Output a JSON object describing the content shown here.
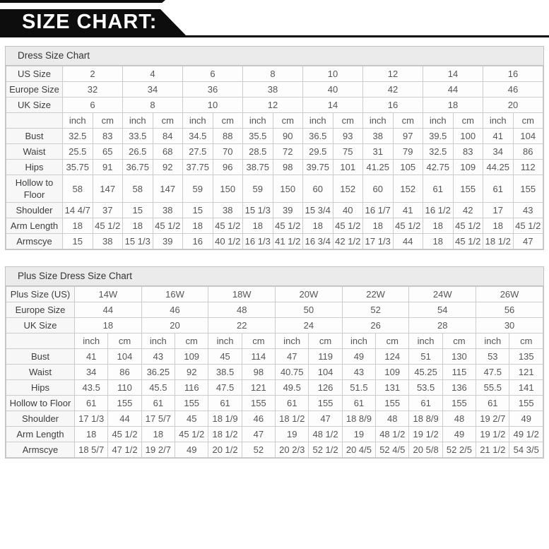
{
  "banner": {
    "title": "SIZE CHART:"
  },
  "tables": [
    {
      "title": "Dress Size Chart",
      "label_col_width": 80,
      "unit_columns": 16,
      "size_rows": [
        {
          "label": "US Size",
          "values": [
            "2",
            "4",
            "6",
            "8",
            "10",
            "12",
            "14",
            "16"
          ]
        },
        {
          "label": "Europe Size",
          "values": [
            "32",
            "34",
            "36",
            "38",
            "40",
            "42",
            "44",
            "46"
          ]
        },
        {
          "label": "UK Size",
          "values": [
            "6",
            "8",
            "10",
            "12",
            "14",
            "16",
            "18",
            "20"
          ]
        }
      ],
      "unit_labels": [
        "inch",
        "cm"
      ],
      "measure_rows": [
        {
          "label": "Bust",
          "values": [
            "32.5",
            "83",
            "33.5",
            "84",
            "34.5",
            "88",
            "35.5",
            "90",
            "36.5",
            "93",
            "38",
            "97",
            "39.5",
            "100",
            "41",
            "104"
          ]
        },
        {
          "label": "Waist",
          "values": [
            "25.5",
            "65",
            "26.5",
            "68",
            "27.5",
            "70",
            "28.5",
            "72",
            "29.5",
            "75",
            "31",
            "79",
            "32.5",
            "83",
            "34",
            "86"
          ]
        },
        {
          "label": "Hips",
          "values": [
            "35.75",
            "91",
            "36.75",
            "92",
            "37.75",
            "96",
            "38.75",
            "98",
            "39.75",
            "101",
            "41.25",
            "105",
            "42.75",
            "109",
            "44.25",
            "112"
          ]
        },
        {
          "label": "Hollow to Floor",
          "values": [
            "58",
            "147",
            "58",
            "147",
            "59",
            "150",
            "59",
            "150",
            "60",
            "152",
            "60",
            "152",
            "61",
            "155",
            "61",
            "155"
          ]
        },
        {
          "label": "Shoulder",
          "values": [
            "14 4/7",
            "37",
            "15",
            "38",
            "15",
            "38",
            "15 1/3",
            "39",
            "15 3/4",
            "40",
            "16 1/7",
            "41",
            "16 1/2",
            "42",
            "17",
            "43"
          ]
        },
        {
          "label": "Arm Length",
          "values": [
            "18",
            "45 1/2",
            "18",
            "45 1/2",
            "18",
            "45 1/2",
            "18",
            "45 1/2",
            "18",
            "45 1/2",
            "18",
            "45 1/2",
            "18",
            "45 1/2",
            "18",
            "45 1/2"
          ]
        },
        {
          "label": "Armscye",
          "values": [
            "15",
            "38",
            "15 1/3",
            "39",
            "16",
            "40 1/2",
            "16 1/3",
            "41 1/2",
            "16 3/4",
            "42 1/2",
            "17 1/3",
            "44",
            "18",
            "45 1/2",
            "18 1/2",
            "47"
          ]
        }
      ]
    },
    {
      "title": "Plus Size Dress Size Chart",
      "label_col_width": 97,
      "unit_columns": 14,
      "size_rows": [
        {
          "label": "Plus Size (US)",
          "values": [
            "14W",
            "16W",
            "18W",
            "20W",
            "22W",
            "24W",
            "26W"
          ]
        },
        {
          "label": "Europe Size",
          "values": [
            "44",
            "46",
            "48",
            "50",
            "52",
            "54",
            "56"
          ]
        },
        {
          "label": "UK Size",
          "values": [
            "18",
            "20",
            "22",
            "24",
            "26",
            "28",
            "30"
          ]
        }
      ],
      "unit_labels": [
        "inch",
        "cm"
      ],
      "measure_rows": [
        {
          "label": "Bust",
          "values": [
            "41",
            "104",
            "43",
            "109",
            "45",
            "114",
            "47",
            "119",
            "49",
            "124",
            "51",
            "130",
            "53",
            "135"
          ]
        },
        {
          "label": "Waist",
          "values": [
            "34",
            "86",
            "36.25",
            "92",
            "38.5",
            "98",
            "40.75",
            "104",
            "43",
            "109",
            "45.25",
            "115",
            "47.5",
            "121"
          ]
        },
        {
          "label": "Hips",
          "values": [
            "43.5",
            "110",
            "45.5",
            "116",
            "47.5",
            "121",
            "49.5",
            "126",
            "51.5",
            "131",
            "53.5",
            "136",
            "55.5",
            "141"
          ]
        },
        {
          "label": "Hollow to Floor",
          "values": [
            "61",
            "155",
            "61",
            "155",
            "61",
            "155",
            "61",
            "155",
            "61",
            "155",
            "61",
            "155",
            "61",
            "155"
          ]
        },
        {
          "label": "Shoulder",
          "values": [
            "17 1/3",
            "44",
            "17 5/7",
            "45",
            "18 1/9",
            "46",
            "18 1/2",
            "47",
            "18 8/9",
            "48",
            "18 8/9",
            "48",
            "19 2/7",
            "49"
          ]
        },
        {
          "label": "Arm Length",
          "values": [
            "18",
            "45 1/2",
            "18",
            "45 1/2",
            "18 1/2",
            "47",
            "19",
            "48 1/2",
            "19",
            "48 1/2",
            "19 1/2",
            "49",
            "19 1/2",
            "49 1/2"
          ]
        },
        {
          "label": "Armscye",
          "values": [
            "18 5/7",
            "47 1/2",
            "19 2/7",
            "49",
            "20 1/2",
            "52",
            "20 2/3",
            "52 1/2",
            "20 4/5",
            "52 4/5",
            "20 5/8",
            "52 2/5",
            "21 1/2",
            "54 3/5"
          ]
        }
      ]
    }
  ]
}
